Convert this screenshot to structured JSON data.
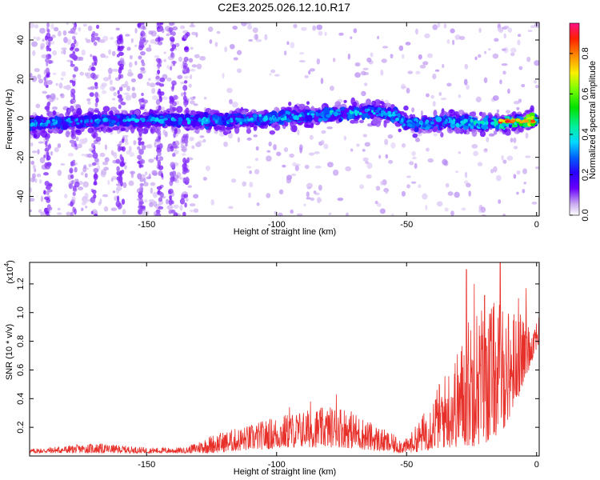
{
  "title": "C2E3.2025.026.12.10.R17",
  "chart_data": [
    {
      "type": "heatmap",
      "xlabel": "Height of straight line (km)",
      "ylabel": "Frequency (Hz)",
      "xlim": [
        -195,
        1
      ],
      "ylim": [
        -50,
        49
      ],
      "xticks": [
        -150,
        -100,
        -50,
        0
      ],
      "yticks": [
        -40,
        -20,
        0,
        20,
        40
      ],
      "colorbar": {
        "label": "Normalized spectral amplitude",
        "range": [
          0,
          0.95
        ],
        "ticks": [
          0.0,
          0.2,
          0.4,
          0.6,
          0.8
        ]
      },
      "ridge": [
        {
          "x": -195,
          "f": -3,
          "amp": 0.2
        },
        {
          "x": -180,
          "f": -2,
          "amp": 0.22
        },
        {
          "x": -160,
          "f": -1,
          "amp": 0.22
        },
        {
          "x": -140,
          "f": -1,
          "amp": 0.24
        },
        {
          "x": -120,
          "f": -1,
          "amp": 0.25
        },
        {
          "x": -100,
          "f": 0,
          "amp": 0.28
        },
        {
          "x": -80,
          "f": 2,
          "amp": 0.3
        },
        {
          "x": -65,
          "f": 4,
          "amp": 0.3
        },
        {
          "x": -55,
          "f": 2,
          "amp": 0.28
        },
        {
          "x": -50,
          "f": -3,
          "amp": 0.3
        },
        {
          "x": -40,
          "f": -2,
          "amp": 0.32
        },
        {
          "x": -30,
          "f": -2,
          "amp": 0.35
        },
        {
          "x": -20,
          "f": -3,
          "amp": 0.4
        },
        {
          "x": -10,
          "f": -2,
          "amp": 0.7
        },
        {
          "x": -2,
          "f": -1,
          "amp": 0.9
        }
      ]
    },
    {
      "type": "line",
      "xlabel": "Height of straight line (km)",
      "ylabel": "SNR (10 * v/v)",
      "y_multiplier_label": "(x10",
      "y_multiplier_exp": "4",
      "y_multiplier_close": ")",
      "xlim": [
        -195,
        1
      ],
      "ylim": [
        0,
        1.35
      ],
      "xticks": [
        -150,
        -100,
        -50,
        0
      ],
      "yticks": [
        0.2,
        0.4,
        0.6,
        0.8,
        1.0,
        1.2
      ],
      "ytick_labels": [
        "0.2",
        "0.4",
        "0.6",
        "0.8",
        "1.0",
        "1.2"
      ],
      "series": [
        {
          "color": "#e8302a",
          "envelope": [
            {
              "x": -195,
              "lo": 0.02,
              "hi": 0.05
            },
            {
              "x": -170,
              "lo": 0.02,
              "hi": 0.09
            },
            {
              "x": -150,
              "lo": 0.02,
              "hi": 0.06
            },
            {
              "x": -135,
              "lo": 0.02,
              "hi": 0.06
            },
            {
              "x": -125,
              "lo": 0.02,
              "hi": 0.15
            },
            {
              "x": -110,
              "lo": 0.04,
              "hi": 0.22
            },
            {
              "x": -100,
              "lo": 0.05,
              "hi": 0.28
            },
            {
              "x": -90,
              "lo": 0.06,
              "hi": 0.32
            },
            {
              "x": -75,
              "lo": 0.06,
              "hi": 0.36
            },
            {
              "x": -65,
              "lo": 0.04,
              "hi": 0.25
            },
            {
              "x": -55,
              "lo": 0.02,
              "hi": 0.15
            },
            {
              "x": -50,
              "lo": 0.02,
              "hi": 0.12
            },
            {
              "x": -45,
              "lo": 0.03,
              "hi": 0.25
            },
            {
              "x": -38,
              "lo": 0.05,
              "hi": 0.5
            },
            {
              "x": -30,
              "lo": 0.06,
              "hi": 0.75
            },
            {
              "x": -25,
              "lo": 0.06,
              "hi": 1.05
            },
            {
              "x": -18,
              "lo": 0.1,
              "hi": 1.1
            },
            {
              "x": -12,
              "lo": 0.2,
              "hi": 1.05
            },
            {
              "x": -6,
              "lo": 0.45,
              "hi": 1.0
            },
            {
              "x": -2,
              "lo": 0.65,
              "hi": 0.9
            },
            {
              "x": 0,
              "lo": 0.75,
              "hi": 1.0
            }
          ],
          "peaks": [
            {
              "x": -27,
              "y": 1.3
            },
            {
              "x": -24,
              "y": 1.2
            },
            {
              "x": -20,
              "y": 1.12
            },
            {
              "x": -14,
              "y": 1.35
            },
            {
              "x": -4,
              "y": 1.17
            },
            {
              "x": -7,
              "y": 1.1
            },
            {
              "x": -77,
              "y": 0.43
            },
            {
              "x": -95,
              "y": 0.34
            },
            {
              "x": -87,
              "y": 0.38
            }
          ]
        }
      ]
    }
  ]
}
